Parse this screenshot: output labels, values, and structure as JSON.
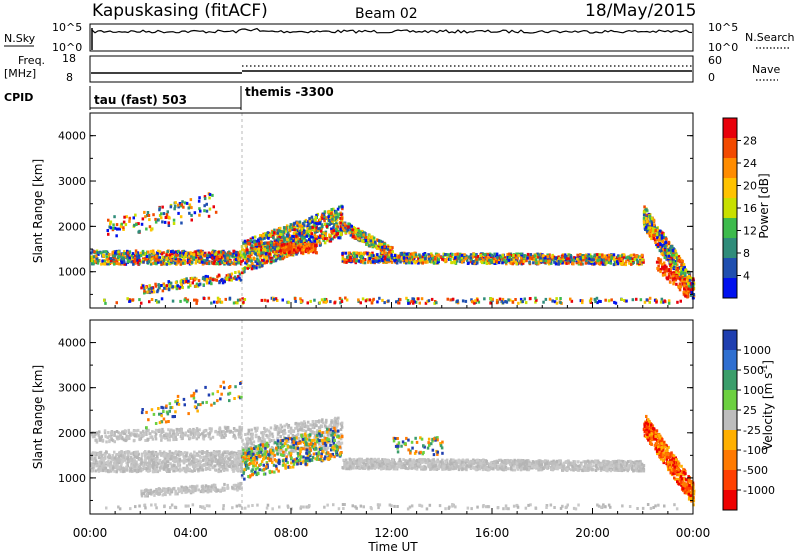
{
  "header": {
    "title": "Kapuskasing (fitACF)",
    "beam": "Beam 02",
    "date": "18/May/2015"
  },
  "status_panels": {
    "nsky": {
      "label": "N.Sky",
      "ticks": [
        "10^5",
        "10^0"
      ],
      "right_label": "N.Search",
      "right_ticks": [
        "10^5",
        "10^0"
      ]
    },
    "freq": {
      "label_line1": "Freq.",
      "label_line2": "[MHz]",
      "ticks": [
        "18",
        "8"
      ],
      "right_label": "Nave",
      "right_ticks": [
        "60",
        "0"
      ]
    },
    "cpid": {
      "label": "CPID",
      "segments": [
        "tau (fast) 503",
        "themis -3300"
      ]
    }
  },
  "chart_data": [
    {
      "type": "heatmap",
      "name": "power",
      "ylabel": "Slant Range [km]",
      "xlabel": "Time UT",
      "xlim": [
        0,
        24
      ],
      "ylim": [
        200,
        4500
      ],
      "y_ticks": [
        "1000",
        "2000",
        "3000",
        "4000"
      ],
      "x_ticks": [
        "00:00",
        "04:00",
        "08:00",
        "12:00",
        "16:00",
        "20:00",
        "00:00"
      ],
      "colorbar": {
        "title": "Power [dB]",
        "labels": [
          "28",
          "24",
          "20",
          "16",
          "12",
          "8",
          "4"
        ],
        "colors": [
          "#e8000b",
          "#f24a00",
          "#ff8c00",
          "#ffc300",
          "#c8e000",
          "#3dbb4c",
          "#2f8c7a",
          "#1f4fb0",
          "#0011ee"
        ]
      },
      "structures": [
        {
          "t": [
            0,
            6
          ],
          "range": [
            1150,
            1450
          ],
          "level": "12-16 dB"
        },
        {
          "t": [
            6,
            10
          ],
          "range": [
            1100,
            2200
          ],
          "level": "8-28 dB"
        },
        {
          "t": [
            10,
            22
          ],
          "range": [
            1100,
            1400
          ],
          "level": "8-16 dB"
        },
        {
          "t": [
            22,
            24
          ],
          "range": [
            300,
            2300
          ],
          "level": "8-28 dB"
        }
      ]
    },
    {
      "type": "heatmap",
      "name": "velocity",
      "ylabel": "Slant Range [km]",
      "xlabel": "Time UT",
      "xlim": [
        0,
        24
      ],
      "ylim": [
        200,
        4500
      ],
      "y_ticks": [
        "1000",
        "2000",
        "3000",
        "4000"
      ],
      "x_ticks": [
        "00:00",
        "04:00",
        "08:00",
        "12:00",
        "16:00",
        "20:00",
        "00:00"
      ],
      "colorbar": {
        "title": "Velocity [m s",
        "title_sup": "-1",
        "title_end": "]",
        "labels": [
          "1000",
          "500",
          "100",
          "25",
          "-25",
          "-100",
          "-500",
          "-1000"
        ],
        "colors": [
          "#1f3fb0",
          "#2f6fd0",
          "#3b9e6b",
          "#6cd040",
          "#bdbdbd",
          "#ffb000",
          "#ff7a00",
          "#ff4000",
          "#ee0000"
        ]
      },
      "structures": [
        {
          "t": [
            0,
            6
          ],
          "range": [
            1100,
            2000
          ],
          "velocity": "-25 to 25 m/s (ground scatter)"
        },
        {
          "t": [
            6,
            10
          ],
          "range": [
            1000,
            2300
          ],
          "velocity": "-500 to 100 m/s"
        },
        {
          "t": [
            10,
            22
          ],
          "range": [
            1100,
            1400
          ],
          "velocity": "-25 to 25 m/s"
        },
        {
          "t": [
            22,
            24
          ],
          "range": [
            500,
            2300
          ],
          "velocity": "-1000 to -100 m/s"
        }
      ]
    }
  ]
}
